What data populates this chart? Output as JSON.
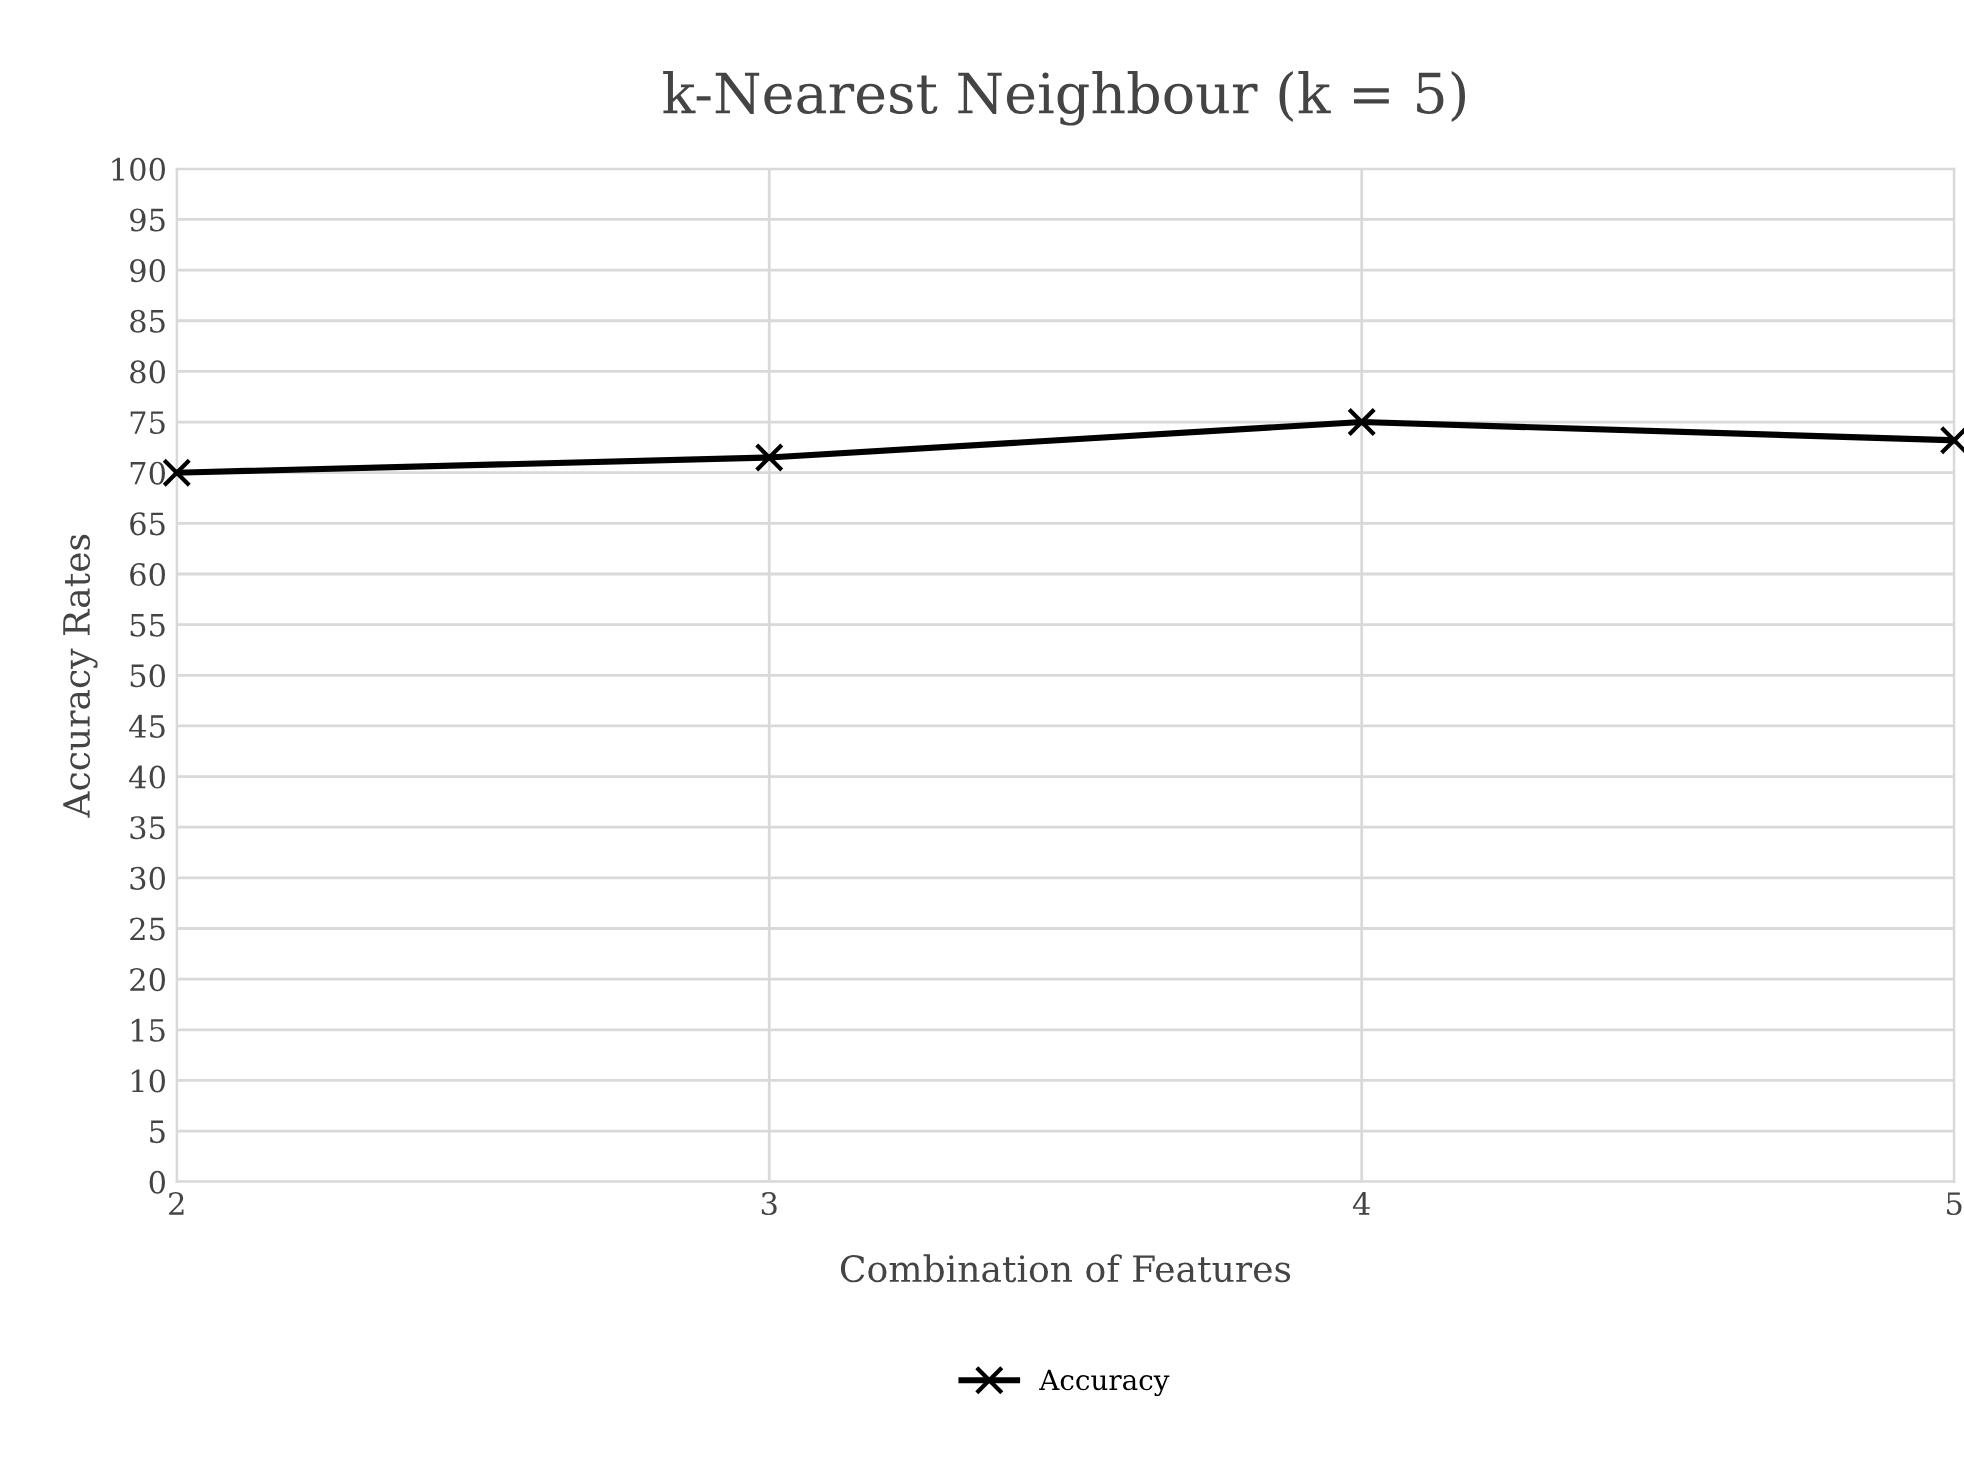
{
  "chart_data": {
    "type": "line",
    "title": "k-Nearest Neighbour (k = 5)",
    "xlabel": "Combination of Features",
    "ylabel": "Accuracy Rates",
    "x": [
      2,
      3,
      4,
      5
    ],
    "xlim": [
      2,
      5
    ],
    "xticks": [
      2,
      3,
      4,
      5
    ],
    "series": [
      {
        "name": "Accuracy",
        "color": "#000000",
        "values": [
          70.0,
          71.5,
          75.0,
          73.2
        ]
      }
    ],
    "ylim": [
      0,
      100
    ],
    "yticks": [
      0,
      5,
      10,
      15,
      20,
      25,
      30,
      35,
      40,
      45,
      50,
      55,
      60,
      65,
      70,
      75,
      80,
      85,
      90,
      95,
      100
    ],
    "grid": true,
    "legend": "bottom",
    "marker": "cross",
    "line_style": "solid"
  }
}
